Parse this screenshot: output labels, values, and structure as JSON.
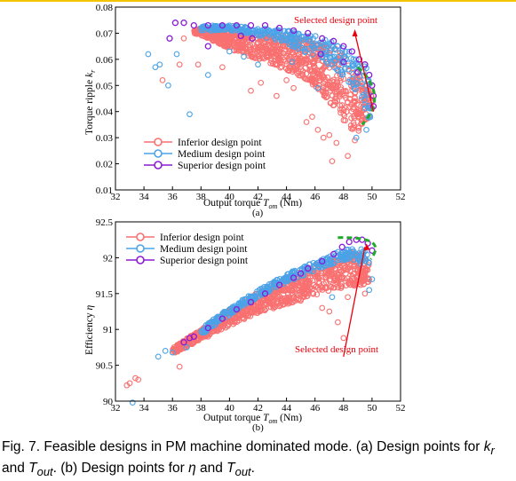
{
  "colors": {
    "inferior": "#f97070",
    "medium": "#4aa3e8",
    "superior": "#8a1ad6",
    "highlight_ring": "#1faa2b",
    "arrow": "#e8000b",
    "caption_rule": "#f2c500"
  },
  "caption": {
    "fig_label": "Fig. 7.",
    "text_1": " Feasible designs in PM machine dominated mode. (a) Design points for ",
    "sym_k": "k",
    "sub_r": "r",
    "text_2": " and ",
    "sym_T1": "T",
    "sub_out1": "out",
    "text_3": ". (b) Design points for ",
    "sym_eta": "η",
    "text_4": " and ",
    "sym_T2": "T",
    "sub_out2": "out",
    "text_5": "."
  },
  "chart_data": [
    {
      "panel": "(a)",
      "type": "scatter",
      "xlim": [
        32,
        52
      ],
      "ylim": [
        0.01,
        0.08
      ],
      "x_ticks": [
        "32",
        "34",
        "36",
        "38",
        "40",
        "42",
        "44",
        "46",
        "48",
        "50",
        "52"
      ],
      "y_ticks": [
        "0.01",
        "0.02",
        "0.03",
        "0.04",
        "0.05",
        "0.06",
        "0.07",
        "0.08"
      ],
      "xlabel": {
        "main": "Output torque ",
        "sym": "T",
        "sub": "om",
        "unit": " (Nm)"
      },
      "ylabel": {
        "main": "Torque ripple ",
        "sym": "k",
        "sub": "r"
      },
      "legend": {
        "position": "bottom-left",
        "entries": [
          "Inferior design point",
          "Medium design point",
          "Superior design point"
        ]
      },
      "annotation": {
        "text": "Selected design point",
        "point": [
          49.3,
          0.047
        ]
      },
      "series": [
        {
          "name": "Inferior design point",
          "band": {
            "x": [
              37.5,
              38.5,
              40,
              42,
              44,
              45.5,
              46.5,
              47.5,
              48.3,
              49,
              49.5,
              50
            ],
            "upper": [
              0.072,
              0.072,
              0.071,
              0.07,
              0.069,
              0.068,
              0.066,
              0.064,
              0.06,
              0.056,
              0.052,
              0.047
            ],
            "lower": [
              0.07,
              0.068,
              0.064,
              0.06,
              0.056,
              0.052,
              0.047,
              0.04,
              0.034,
              0.032,
              0.035,
              0.04
            ]
          },
          "outliers": [
            [
              35.3,
              0.052
            ],
            [
              36.5,
              0.058
            ],
            [
              37.8,
              0.058
            ],
            [
              39.5,
              0.057
            ],
            [
              41.5,
              0.048
            ],
            [
              42.2,
              0.051
            ],
            [
              43.3,
              0.046
            ],
            [
              44.5,
              0.049
            ],
            [
              45.4,
              0.036
            ],
            [
              45.8,
              0.038
            ],
            [
              46.2,
              0.033
            ],
            [
              46.6,
              0.03
            ],
            [
              47,
              0.031
            ],
            [
              47.5,
              0.028
            ],
            [
              47.2,
              0.021
            ],
            [
              48.3,
              0.023
            ],
            [
              48.8,
              0.029
            ],
            [
              44,
              0.052
            ],
            [
              36.8,
              0.068
            ]
          ]
        },
        {
          "name": "Medium design point",
          "band": {
            "x": [
              38,
              40,
              42,
              44,
              46,
              47.5,
              48.5,
              49.5,
              50
            ],
            "upper": [
              0.073,
              0.073,
              0.072,
              0.071,
              0.069,
              0.066,
              0.063,
              0.058,
              0.052
            ],
            "lower": [
              0.071,
              0.071,
              0.069,
              0.066,
              0.061,
              0.056,
              0.05,
              0.04,
              0.035
            ]
          },
          "outliers": [
            [
              34.3,
              0.062
            ],
            [
              34.8,
              0.057
            ],
            [
              35.1,
              0.058
            ],
            [
              35.7,
              0.05
            ],
            [
              36.3,
              0.062
            ],
            [
              37.2,
              0.039
            ],
            [
              38.5,
              0.054
            ],
            [
              40,
              0.063
            ],
            [
              41,
              0.061
            ],
            [
              42,
              0.058
            ],
            [
              44.4,
              0.059
            ],
            [
              46.2,
              0.049
            ],
            [
              48.9,
              0.03
            ],
            [
              49.6,
              0.033
            ]
          ]
        },
        {
          "name": "Superior design point",
          "points": [
            [
              36.2,
              0.074
            ],
            [
              36.8,
              0.074
            ],
            [
              37.5,
              0.073
            ],
            [
              38.5,
              0.073
            ],
            [
              39.5,
              0.073
            ],
            [
              40.5,
              0.073
            ],
            [
              41.5,
              0.073
            ],
            [
              42.5,
              0.073
            ],
            [
              43.5,
              0.072
            ],
            [
              44.5,
              0.071
            ],
            [
              45.5,
              0.07
            ],
            [
              46.5,
              0.068
            ],
            [
              47.3,
              0.067
            ],
            [
              48,
              0.065
            ],
            [
              48.6,
              0.063
            ],
            [
              49.1,
              0.06
            ],
            [
              49.5,
              0.058
            ],
            [
              49.8,
              0.054
            ],
            [
              50,
              0.05
            ],
            [
              50.1,
              0.046
            ],
            [
              50.1,
              0.042
            ],
            [
              35.8,
              0.068
            ],
            [
              38.5,
              0.065
            ],
            [
              40.8,
              0.069
            ],
            [
              46.4,
              0.062
            ],
            [
              48,
              0.059
            ],
            [
              49,
              0.055
            ],
            [
              41.6,
              0.068
            ]
          ]
        }
      ]
    },
    {
      "panel": "(b)",
      "type": "scatter",
      "xlim": [
        32,
        52
      ],
      "ylim": [
        90,
        92.5
      ],
      "x_ticks": [
        "32",
        "34",
        "36",
        "38",
        "40",
        "42",
        "44",
        "46",
        "48",
        "50",
        "52"
      ],
      "y_ticks": [
        "90",
        "90.5",
        "91",
        "91.5",
        "92",
        "92.5"
      ],
      "xlabel": {
        "main": "Output torque ",
        "sym": "T",
        "sub": "om",
        "unit": " (Nm)"
      },
      "ylabel": {
        "main": "Efficiency ",
        "sym": "η",
        "sub": ""
      },
      "legend": {
        "position": "top-left",
        "entries": [
          "Inferior design point",
          "Medium design point",
          "Superior design point"
        ]
      },
      "annotation": {
        "text": "Selected design point",
        "point": [
          49.4,
          92.2
        ]
      },
      "series": [
        {
          "name": "Inferior design point",
          "band": {
            "x": [
              36,
              38,
              40,
              42,
              44,
              46,
              47.5,
              48.5,
              49.3,
              49.8
            ],
            "upper": [
              90.75,
              91.0,
              91.28,
              91.52,
              91.72,
              91.9,
              92.02,
              92.08,
              92.05,
              91.95
            ],
            "lower": [
              90.65,
              90.86,
              91.05,
              91.22,
              91.35,
              91.48,
              91.55,
              91.6,
              91.62,
              91.65
            ]
          },
          "outliers": [
            [
              32.8,
              90.22
            ],
            [
              33,
              90.25
            ],
            [
              33.4,
              90.32
            ],
            [
              33.6,
              90.3
            ],
            [
              36.5,
              90.48
            ],
            [
              38.5,
              90.9
            ],
            [
              41,
              91.15
            ],
            [
              45,
              91.4
            ],
            [
              46.5,
              91.3
            ],
            [
              47,
              91.25
            ],
            [
              47.6,
              91.1
            ],
            [
              48.3,
              91.45
            ],
            [
              49.5,
              91.5
            ],
            [
              48,
              90.88
            ]
          ]
        },
        {
          "name": "Medium design point",
          "band": {
            "x": [
              38,
              40,
              42,
              44,
              46,
              47.5,
              48.5,
              49.3,
              49.8
            ],
            "upper": [
              91.02,
              91.3,
              91.55,
              91.77,
              91.95,
              92.08,
              92.13,
              92.12,
              92.05
            ],
            "lower": [
              90.92,
              91.2,
              91.45,
              91.65,
              91.82,
              91.93,
              91.98,
              91.9,
              91.8
            ]
          },
          "outliers": [
            [
              33.2,
              89.98
            ],
            [
              35,
              90.62
            ],
            [
              35.5,
              90.7
            ],
            [
              36,
              90.68
            ],
            [
              37,
              90.75
            ],
            [
              50,
              91.7
            ],
            [
              49.8,
              91.55
            ],
            [
              47.2,
              91.45
            ]
          ]
        },
        {
          "name": "Superior design point",
          "points": [
            [
              36.8,
              90.82
            ],
            [
              37.5,
              90.9
            ],
            [
              38.5,
              91.02
            ],
            [
              39.5,
              91.15
            ],
            [
              40.5,
              91.28
            ],
            [
              41.5,
              91.38
            ],
            [
              42.5,
              91.5
            ],
            [
              43.5,
              91.62
            ],
            [
              44.5,
              91.72
            ],
            [
              45.5,
              91.85
            ],
            [
              46.5,
              91.95
            ],
            [
              47.3,
              92.05
            ],
            [
              47.9,
              92.15
            ],
            [
              48.4,
              92.22
            ],
            [
              48.9,
              92.25
            ],
            [
              49.3,
              92.25
            ],
            [
              49.7,
              92.2
            ],
            [
              50,
              92.1
            ],
            [
              37.2,
              90.88
            ],
            [
              45,
              91.78
            ]
          ]
        }
      ]
    }
  ]
}
